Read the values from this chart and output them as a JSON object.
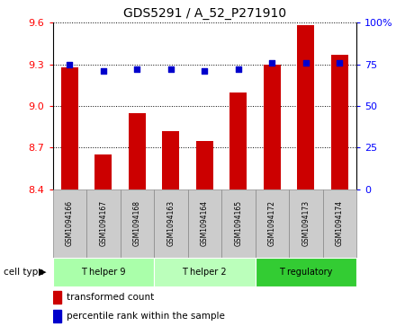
{
  "title": "GDS5291 / A_52_P271910",
  "categories": [
    "GSM1094166",
    "GSM1094167",
    "GSM1094168",
    "GSM1094163",
    "GSM1094164",
    "GSM1094165",
    "GSM1094172",
    "GSM1094173",
    "GSM1094174"
  ],
  "bar_values": [
    9.28,
    8.65,
    8.95,
    8.82,
    8.75,
    9.1,
    9.3,
    9.58,
    9.37
  ],
  "percentile_values": [
    75,
    71,
    72,
    72,
    71,
    72,
    76,
    76,
    76
  ],
  "ylim_left": [
    8.4,
    9.6
  ],
  "ylim_right": [
    0,
    100
  ],
  "yticks_left": [
    8.4,
    8.7,
    9.0,
    9.3,
    9.6
  ],
  "yticks_right": [
    0,
    25,
    50,
    75,
    100
  ],
  "bar_color": "#cc0000",
  "dot_color": "#0000cc",
  "background_color": "#ffffff",
  "groups": [
    {
      "label": "T helper 9",
      "start": 0,
      "end": 2,
      "color": "#aaffaa"
    },
    {
      "label": "T helper 2",
      "start": 3,
      "end": 5,
      "color": "#bbffbb"
    },
    {
      "label": "T regulatory",
      "start": 6,
      "end": 8,
      "color": "#33cc33"
    }
  ],
  "cell_type_label": "cell type",
  "legend_bar_label": "transformed count",
  "legend_dot_label": "percentile rank within the sample",
  "label_box_color": "#cccccc",
  "label_box_edge": "#888888"
}
